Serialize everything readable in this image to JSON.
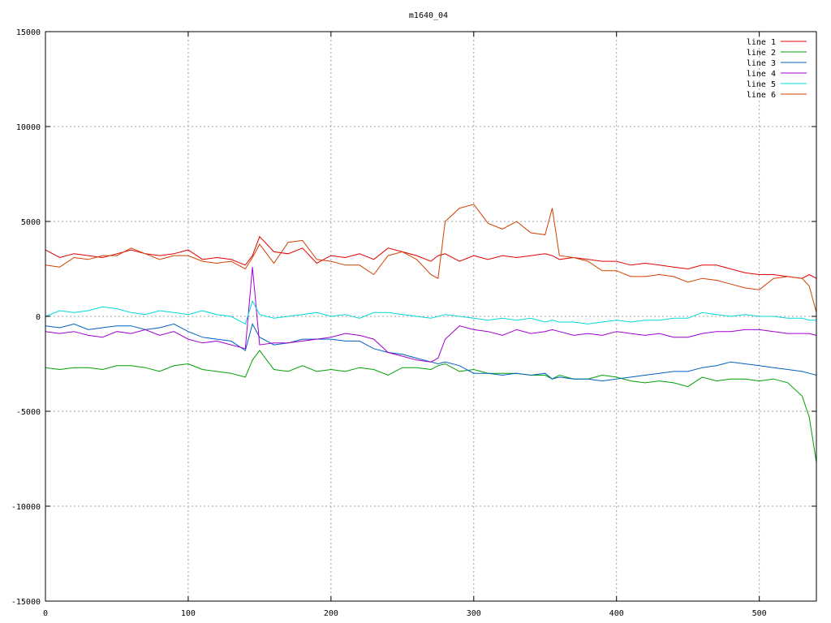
{
  "chart_data": {
    "type": "line",
    "title": "m1640_04",
    "xlabel": "",
    "ylabel": "",
    "xlim": [
      0,
      540
    ],
    "ylim": [
      -15000,
      15000
    ],
    "xticks": [
      "0",
      "100",
      "200",
      "300",
      "400",
      "500"
    ],
    "yticks": [
      "-15000",
      "-10000",
      "-5000",
      "0",
      "5000",
      "10000",
      "15000"
    ],
    "grid": true,
    "legend": "top-right",
    "x": [
      0,
      10,
      20,
      30,
      40,
      50,
      60,
      70,
      80,
      90,
      100,
      110,
      120,
      130,
      140,
      145,
      150,
      160,
      170,
      180,
      190,
      200,
      210,
      220,
      230,
      240,
      250,
      260,
      270,
      275,
      280,
      290,
      300,
      310,
      320,
      330,
      340,
      350,
      355,
      360,
      370,
      380,
      390,
      400,
      410,
      420,
      430,
      440,
      450,
      460,
      470,
      480,
      490,
      500,
      510,
      520,
      530,
      535,
      540
    ],
    "series": [
      {
        "name": "line 1",
        "color": "#e00000",
        "values": [
          3500,
          3100,
          3300,
          3200,
          3100,
          3300,
          3500,
          3300,
          3200,
          3300,
          3500,
          3000,
          3100,
          3000,
          2700,
          3200,
          4200,
          3400,
          3300,
          3600,
          2800,
          3200,
          3100,
          3300,
          3000,
          3600,
          3400,
          3200,
          2900,
          3200,
          3300,
          2900,
          3200,
          3000,
          3200,
          3100,
          3200,
          3300,
          3200,
          3000,
          3100,
          3000,
          2900,
          2900,
          2700,
          2800,
          2700,
          2600,
          2500,
          2700,
          2700,
          2500,
          2300,
          2200,
          2200,
          2100,
          2000,
          2200,
          2000
        ]
      },
      {
        "name": "line 2",
        "color": "#00a000",
        "values": [
          -2700,
          -2800,
          -2700,
          -2700,
          -2800,
          -2600,
          -2600,
          -2700,
          -2900,
          -2600,
          -2500,
          -2800,
          -2900,
          -3000,
          -3200,
          -2300,
          -1800,
          -2800,
          -2900,
          -2600,
          -2900,
          -2800,
          -2900,
          -2700,
          -2800,
          -3100,
          -2700,
          -2700,
          -2800,
          -2600,
          -2500,
          -2900,
          -2800,
          -3000,
          -3000,
          -3000,
          -3100,
          -3100,
          -3300,
          -3100,
          -3300,
          -3300,
          -3100,
          -3200,
          -3400,
          -3500,
          -3400,
          -3500,
          -3700,
          -3200,
          -3400,
          -3300,
          -3300,
          -3400,
          -3300,
          -3500,
          -4200,
          -5300,
          -7700
        ]
      },
      {
        "name": "line 3",
        "color": "#0060c0",
        "values": [
          -500,
          -600,
          -400,
          -700,
          -600,
          -500,
          -500,
          -700,
          -600,
          -400,
          -800,
          -1100,
          -1200,
          -1300,
          -1800,
          -400,
          -1100,
          -1500,
          -1400,
          -1200,
          -1200,
          -1200,
          -1300,
          -1300,
          -1700,
          -1900,
          -2000,
          -2200,
          -2400,
          -2500,
          -2400,
          -2600,
          -3000,
          -3000,
          -3100,
          -3000,
          -3100,
          -3000,
          -3300,
          -3200,
          -3300,
          -3300,
          -3400,
          -3300,
          -3200,
          -3100,
          -3000,
          -2900,
          -2900,
          -2700,
          -2600,
          -2400,
          -2500,
          -2600,
          -2700,
          -2800,
          -2900,
          -3000,
          -3100
        ]
      },
      {
        "name": "line 4",
        "color": "#a000d0",
        "values": [
          -800,
          -900,
          -800,
          -1000,
          -1100,
          -800,
          -900,
          -700,
          -1000,
          -800,
          -1200,
          -1400,
          -1300,
          -1500,
          -1700,
          2600,
          -1500,
          -1400,
          -1400,
          -1300,
          -1200,
          -1100,
          -900,
          -1000,
          -1200,
          -1900,
          -2100,
          -2300,
          -2400,
          -2200,
          -1200,
          -500,
          -700,
          -800,
          -1000,
          -700,
          -900,
          -800,
          -700,
          -800,
          -1000,
          -900,
          -1000,
          -800,
          -900,
          -1000,
          -900,
          -1100,
          -1100,
          -900,
          -800,
          -800,
          -700,
          -700,
          -800,
          -900,
          -900,
          -900,
          -1000
        ]
      },
      {
        "name": "line 5",
        "color": "#00d8d8",
        "values": [
          0,
          300,
          200,
          300,
          500,
          400,
          200,
          100,
          300,
          200,
          100,
          300,
          100,
          0,
          -400,
          800,
          100,
          -100,
          0,
          100,
          200,
          0,
          100,
          -100,
          200,
          200,
          100,
          0,
          -100,
          0,
          100,
          0,
          -100,
          -200,
          -100,
          -200,
          -100,
          -300,
          -200,
          -300,
          -300,
          -400,
          -300,
          -200,
          -300,
          -200,
          -200,
          -100,
          -100,
          200,
          100,
          0,
          100,
          0,
          0,
          -100,
          -100,
          -200,
          -200
        ]
      },
      {
        "name": "line 6",
        "color": "#d04000",
        "values": [
          2700,
          2600,
          3100,
          3000,
          3200,
          3200,
          3600,
          3300,
          3000,
          3200,
          3200,
          2900,
          2800,
          2900,
          2500,
          3100,
          3800,
          2800,
          3900,
          4000,
          3000,
          2900,
          2700,
          2700,
          2200,
          3200,
          3400,
          3000,
          2200,
          2000,
          5000,
          5700,
          5900,
          4900,
          4600,
          5000,
          4400,
          4300,
          5700,
          3200,
          3100,
          2900,
          2400,
          2400,
          2100,
          2100,
          2200,
          2100,
          1800,
          2000,
          1900,
          1700,
          1500,
          1400,
          2000,
          2100,
          2000,
          1600,
          200
        ]
      }
    ]
  }
}
